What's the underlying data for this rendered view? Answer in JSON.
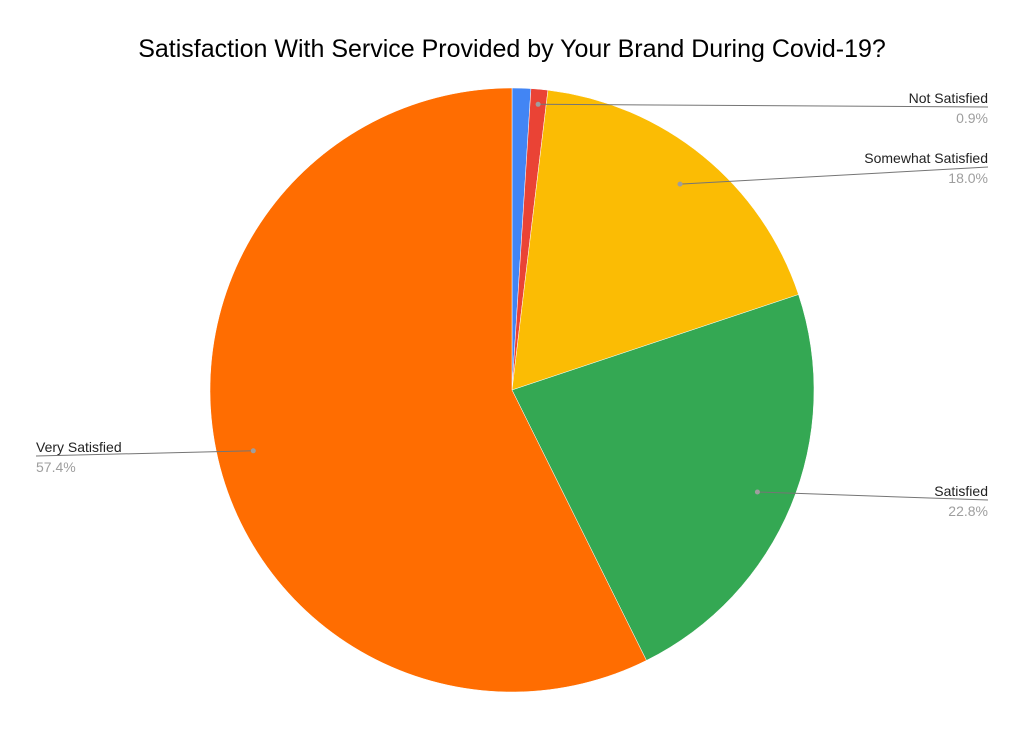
{
  "chart_data": {
    "type": "pie",
    "title": "Satisfaction With Service Provided by Your Brand During Covid-19?",
    "start_angle_deg": 0,
    "direction": "clockwise",
    "slices": [
      {
        "label": "",
        "percent_label": "",
        "value": 1.0,
        "color": "#4285f4"
      },
      {
        "label": "Not Satisfied",
        "percent_label": "0.9%",
        "value": 0.9,
        "color": "#ea4335"
      },
      {
        "label": "Somewhat Satisfied",
        "percent_label": "18.0%",
        "value": 18.0,
        "color": "#fbbc04"
      },
      {
        "label": "Satisfied",
        "percent_label": "22.8%",
        "value": 22.8,
        "color": "#34a853"
      },
      {
        "label": "Very Satisfied",
        "percent_label": "57.4%",
        "value": 57.4,
        "color": "#ff6d01"
      }
    ],
    "leader_line_color": "#757575"
  }
}
